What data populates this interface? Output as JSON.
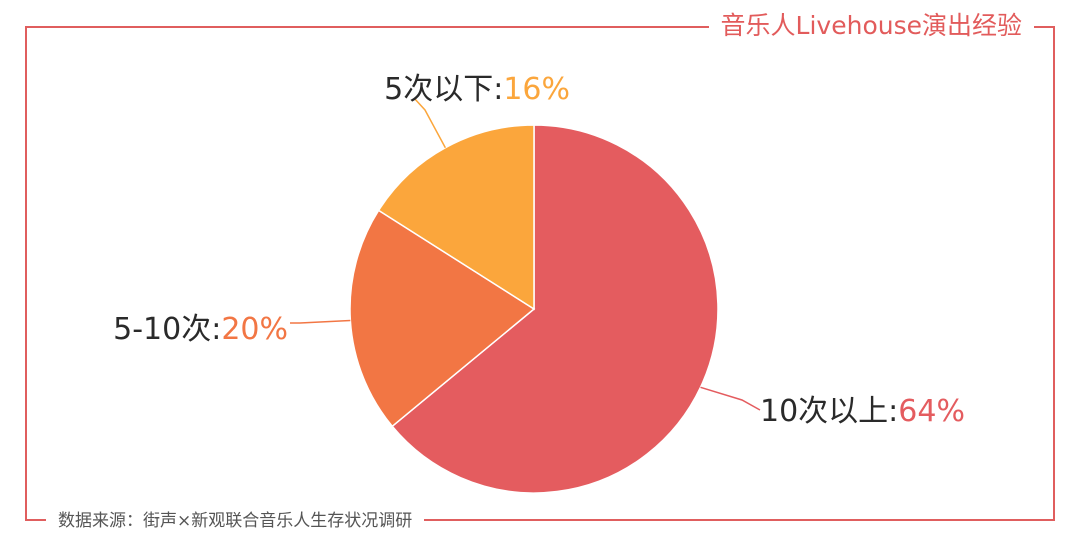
{
  "title": "音乐人Livehouse演出经验",
  "source": "数据来源：街声×新观联合音乐人生存状况调研",
  "chart_data": {
    "type": "pie",
    "title": "音乐人Livehouse演出经验",
    "slices": [
      {
        "name": "10次以上",
        "value": 64,
        "label": "64%",
        "color": "#e45c5f"
      },
      {
        "name": "5-10次",
        "value": 20,
        "label": "20%",
        "color": "#f27644"
      },
      {
        "name": "5次以下",
        "value": 16,
        "label": "16%",
        "color": "#fba63c"
      }
    ],
    "label_separator": ":",
    "start_angle_deg": 0,
    "direction": "clockwise"
  }
}
